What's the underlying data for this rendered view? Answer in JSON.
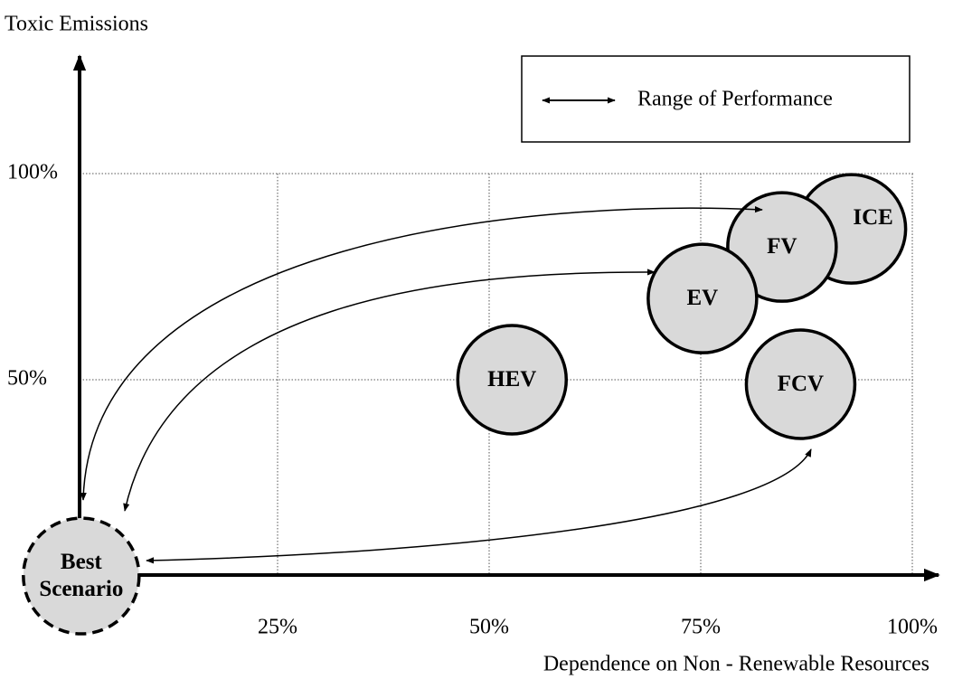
{
  "chart_data": {
    "type": "scatter",
    "ylabel": "Toxic Emissions",
    "xlabel": "Dependence on Non - Renewable Resources",
    "legend": "Range of Performance",
    "labels": [
      "ICE",
      "FV",
      "EV",
      "HEV",
      "FCV",
      "Best Scenario"
    ],
    "x": [
      92.8,
      84.6,
      75.2,
      52.7,
      86.8,
      1.8
    ],
    "values": [
      86.6,
      82.2,
      69.7,
      50,
      48.9,
      2.4
    ],
    "color": "#d9d9d9",
    "xlim": [
      0,
      100
    ],
    "ylim": [
      0,
      100
    ],
    "xticks": [
      {
        "value": 25,
        "label": "25%"
      },
      {
        "value": 50,
        "label": "50%"
      },
      {
        "value": 75,
        "label": "75%"
      },
      {
        "value": 100,
        "label": "100%"
      }
    ],
    "yticks": [
      {
        "value": 50,
        "label": "50%"
      },
      {
        "value": 100,
        "label": "100%"
      }
    ],
    "grid": true
  }
}
